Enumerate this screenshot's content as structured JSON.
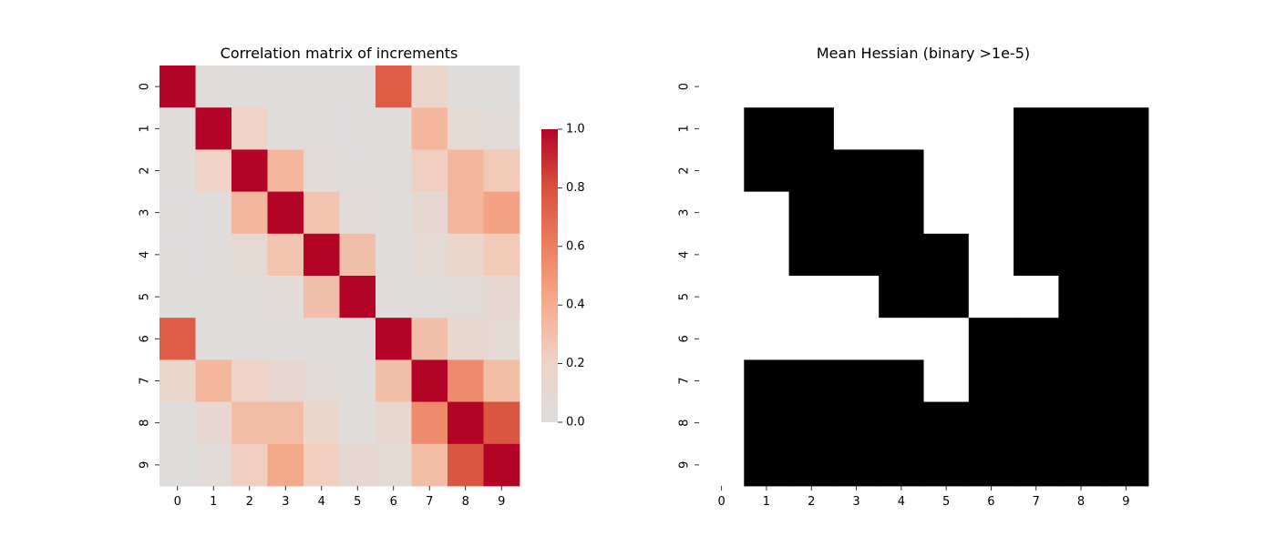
{
  "chart_data": [
    {
      "type": "heatmap",
      "title": "Correlation matrix of increments",
      "xlabel": "",
      "ylabel": "",
      "row_labels": [
        "0",
        "1",
        "2",
        "3",
        "4",
        "5",
        "6",
        "7",
        "8",
        "9"
      ],
      "col_labels": [
        "0",
        "1",
        "2",
        "3",
        "4",
        "5",
        "6",
        "7",
        "8",
        "9"
      ],
      "colormap": "coolwarm",
      "vmin": 0.0,
      "vmax": 1.0,
      "colorbar_ticks": [
        "0.0",
        "0.2",
        "0.4",
        "0.6",
        "0.8",
        "1.0"
      ],
      "values": [
        [
          1.0,
          0.03,
          0.02,
          0.01,
          0.01,
          0.01,
          0.75,
          0.15,
          0.01,
          0.01
        ],
        [
          0.03,
          1.0,
          0.2,
          0.02,
          0.02,
          0.01,
          0.03,
          0.35,
          0.08,
          0.04
        ],
        [
          0.02,
          0.2,
          1.0,
          0.35,
          0.06,
          0.02,
          0.02,
          0.22,
          0.35,
          0.25
        ],
        [
          0.01,
          0.02,
          0.35,
          1.0,
          0.28,
          0.05,
          0.02,
          0.1,
          0.35,
          0.45
        ],
        [
          0.01,
          0.02,
          0.08,
          0.28,
          1.0,
          0.3,
          0.02,
          0.08,
          0.15,
          0.25
        ],
        [
          0.01,
          0.01,
          0.03,
          0.05,
          0.3,
          1.0,
          0.02,
          0.02,
          0.04,
          0.1
        ],
        [
          0.75,
          0.03,
          0.02,
          0.02,
          0.02,
          0.02,
          1.0,
          0.3,
          0.12,
          0.08
        ],
        [
          0.15,
          0.35,
          0.2,
          0.1,
          0.06,
          0.03,
          0.3,
          1.0,
          0.55,
          0.32
        ],
        [
          0.01,
          0.1,
          0.32,
          0.32,
          0.15,
          0.03,
          0.12,
          0.55,
          1.0,
          0.78
        ],
        [
          0.01,
          0.05,
          0.22,
          0.42,
          0.22,
          0.1,
          0.08,
          0.32,
          0.78,
          1.0
        ]
      ]
    },
    {
      "type": "heatmap",
      "title": "Mean Hessian (binary >1e-5)",
      "xlabel": "",
      "ylabel": "",
      "row_labels": [
        "0",
        "1",
        "2",
        "3",
        "4",
        "5",
        "6",
        "7",
        "8",
        "9"
      ],
      "col_labels": [
        "0",
        "1",
        "2",
        "3",
        "4",
        "5",
        "6",
        "7",
        "8",
        "9"
      ],
      "colormap": "binary",
      "values": [
        [
          0,
          0,
          0,
          0,
          0,
          0,
          0,
          0,
          0,
          0
        ],
        [
          0,
          1,
          1,
          0,
          0,
          0,
          0,
          1,
          1,
          1
        ],
        [
          0,
          1,
          1,
          1,
          1,
          0,
          0,
          1,
          1,
          1
        ],
        [
          0,
          0,
          1,
          1,
          1,
          0,
          0,
          1,
          1,
          1
        ],
        [
          0,
          0,
          1,
          1,
          1,
          1,
          0,
          1,
          1,
          1
        ],
        [
          0,
          0,
          0,
          0,
          1,
          1,
          0,
          0,
          1,
          1
        ],
        [
          0,
          0,
          0,
          0,
          0,
          0,
          1,
          1,
          1,
          1
        ],
        [
          0,
          1,
          1,
          1,
          1,
          0,
          1,
          1,
          1,
          1
        ],
        [
          0,
          1,
          1,
          1,
          1,
          1,
          1,
          1,
          1,
          1
        ],
        [
          0,
          1,
          1,
          1,
          1,
          1,
          1,
          1,
          1,
          1
        ]
      ]
    }
  ]
}
